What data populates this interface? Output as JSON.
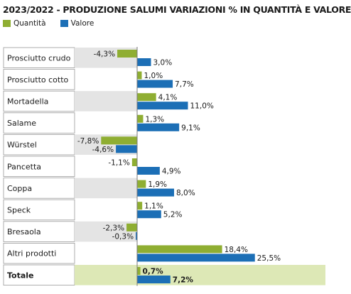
{
  "chart_data": {
    "type": "bar",
    "title": "2023/2022 - PRODUZIONE SALUMI VARIAZIONI % IN QUANTITÀ E VALORE",
    "categories": [
      "Prosciutto crudo",
      "Prosciutto cotto",
      "Mortadella",
      "Salame",
      "Würstel",
      "Pancetta",
      "Coppa",
      "Speck",
      "Bresaola",
      "Altri prodotti",
      "Totale"
    ],
    "series": [
      {
        "name": "Quantità",
        "color": "#8fae32",
        "values": [
          -4.3,
          1.0,
          4.1,
          1.3,
          -7.8,
          -1.1,
          1.9,
          1.1,
          -2.3,
          18.4,
          0.7
        ],
        "labels": [
          "-4,3%",
          "1,0%",
          "4,1%",
          "1,3%",
          "-7,8%",
          "-1,1%",
          "1,9%",
          "1,1%",
          "-2,3%",
          "18,4%",
          "0,7%"
        ]
      },
      {
        "name": "Valore",
        "color": "#1c6fb6",
        "values": [
          3.0,
          7.7,
          11.0,
          9.1,
          -4.6,
          4.9,
          8.0,
          5.2,
          -0.3,
          25.5,
          7.2
        ],
        "labels": [
          "3,0%",
          "7,7%",
          "11,0%",
          "9,1%",
          "-4,6%",
          "4,9%",
          "8,0%",
          "5,2%",
          "-0,3%",
          "25,5%",
          "7,2%"
        ]
      }
    ],
    "legend_position": "top-left",
    "highlight_last_category": true
  }
}
